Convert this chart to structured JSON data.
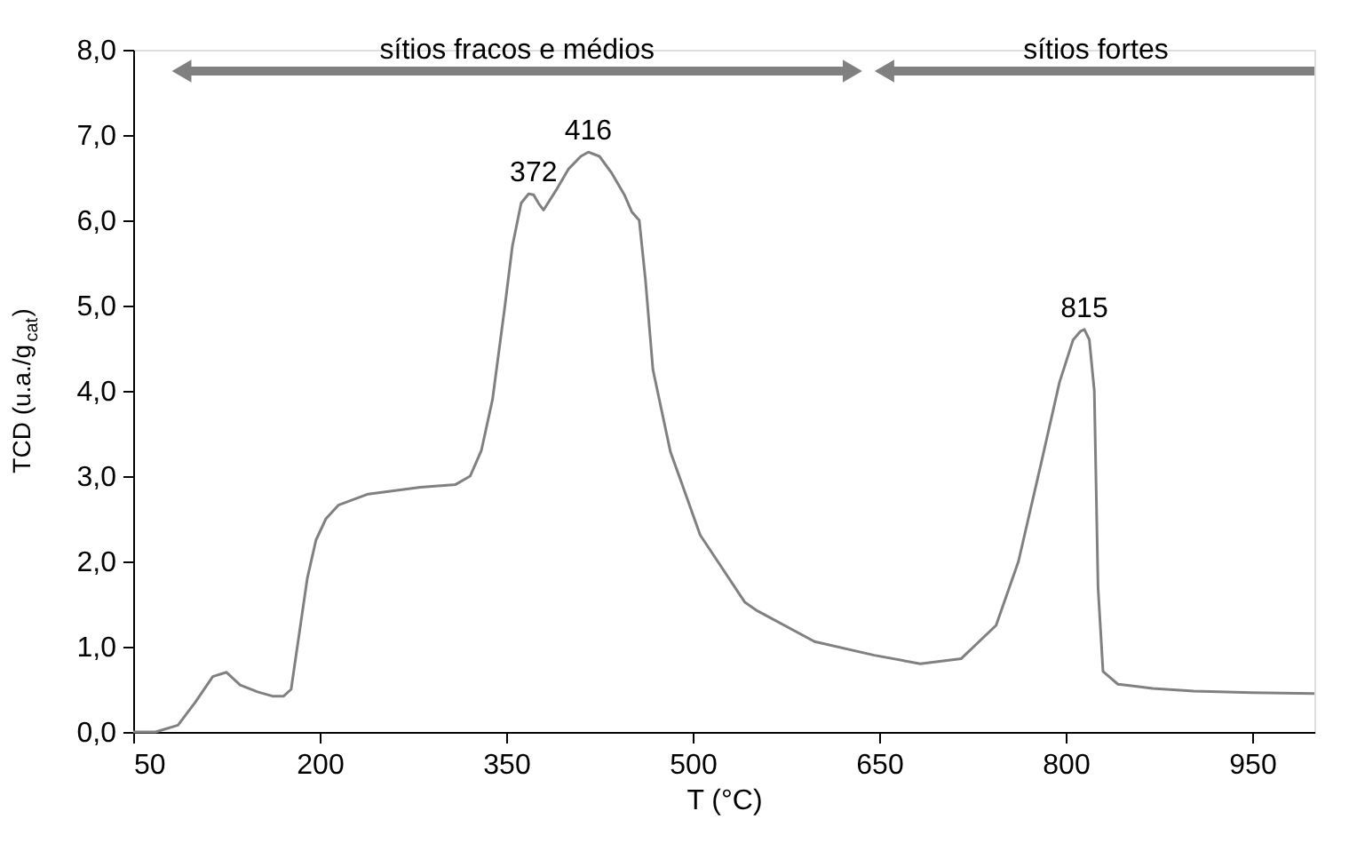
{
  "chart_data": {
    "type": "line",
    "xlabel": "T (°C)",
    "ylabel": "TCD (u.a./g$_{cat}$)",
    "xlim": [
      50,
      1000
    ],
    "xticks": [
      50,
      200,
      350,
      500,
      650,
      800,
      950
    ],
    "ylim": [
      0,
      8
    ],
    "yticks": [
      {
        "value": 0,
        "label": "0,0"
      },
      {
        "value": 1,
        "label": "1,0"
      },
      {
        "value": 2,
        "label": "2,0"
      },
      {
        "value": 3,
        "label": "3,0"
      },
      {
        "value": 4,
        "label": "4,0"
      },
      {
        "value": 5,
        "label": "5,0"
      },
      {
        "value": 6,
        "label": "6,0"
      },
      {
        "value": 7,
        "label": "7,0"
      },
      {
        "value": 8,
        "label": "8,0"
      }
    ],
    "grid": false,
    "marker": "none",
    "line_style": "solid",
    "series": [
      {
        "color": "#808080",
        "x": [
          50,
          68,
          86,
          100,
          114,
          125,
          136,
          150,
          162,
          171,
          177,
          183,
          190,
          197,
          205,
          215,
          239,
          281,
          309,
          321,
          330,
          339,
          349,
          355,
          362,
          368,
          372,
          376,
          380,
          390,
          400,
          410,
          416,
          425,
          435,
          445,
          451,
          457,
          462,
          468,
          482,
          506,
          542,
          552,
          598,
          646,
          683,
          716,
          744,
          762,
          781,
          795,
          806,
          812,
          815,
          819,
          823,
          826,
          830,
          842,
          870,
          903,
          950,
          1000
        ],
        "values": [
          0,
          0,
          0.08,
          0.35,
          0.65,
          0.7,
          0.55,
          0.47,
          0.42,
          0.42,
          0.5,
          1.1,
          1.8,
          2.25,
          2.5,
          2.66,
          2.79,
          2.87,
          2.9,
          3.0,
          3.3,
          3.9,
          5.0,
          5.7,
          6.2,
          6.31,
          6.3,
          6.2,
          6.12,
          6.35,
          6.6,
          6.75,
          6.8,
          6.75,
          6.55,
          6.3,
          6.1,
          6.0,
          5.3,
          4.25,
          3.29,
          2.31,
          1.52,
          1.42,
          1.06,
          0.9,
          0.8,
          0.86,
          1.25,
          2.0,
          3.2,
          4.1,
          4.6,
          4.7,
          4.72,
          4.6,
          4.0,
          1.7,
          0.71,
          0.56,
          0.51,
          0.48,
          0.46,
          0.45
        ]
      }
    ],
    "annotations": [
      {
        "text": "372",
        "x": 372,
        "y": 6.31
      },
      {
        "text": "416",
        "x": 416,
        "y": 6.8
      },
      {
        "text": "815",
        "x": 815,
        "y": 4.72
      },
      "sítios fracos e médios",
      "sítios fortes"
    ]
  }
}
